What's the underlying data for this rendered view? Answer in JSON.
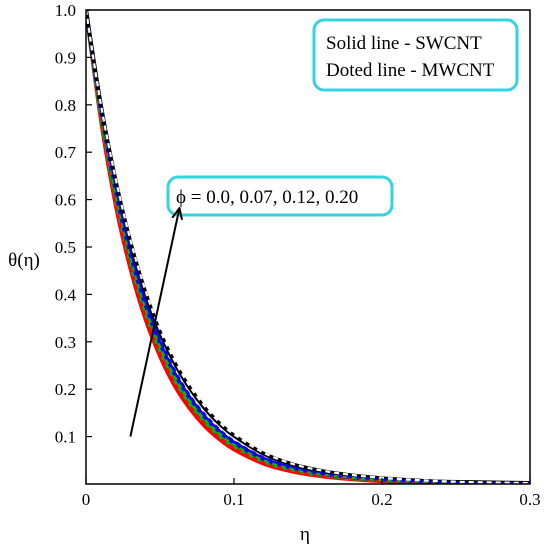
{
  "chart_data": {
    "type": "line",
    "xlabel": "η",
    "ylabel": "θ(η)",
    "xlim": [
      0,
      0.3
    ],
    "ylim": [
      0,
      1.0
    ],
    "x_ticks": [
      "0",
      "0.1",
      "0.2",
      "0.3"
    ],
    "y_ticks": [
      "0.1",
      "0.2",
      "0.3",
      "0.4",
      "0.5",
      "0.6",
      "0.7",
      "0.8",
      "0.9",
      "1.0"
    ],
    "grid": false,
    "legend": {
      "placement": "top-right",
      "entries": [
        "Solid line - SWCNT",
        "Doted line - MWCNT"
      ],
      "border_color": "#33d4e0"
    },
    "annotation": {
      "text": "ϕ = 0.0, 0.07, 0.12, 0.20",
      "border_color": "#33d4e0",
      "arrow_from": [
        0.03,
        0.1
      ],
      "arrow_to": [
        0.063,
        0.58
      ]
    },
    "x": [
      0,
      0.01,
      0.02,
      0.03,
      0.04,
      0.05,
      0.06,
      0.07,
      0.08,
      0.09,
      0.1,
      0.12,
      0.14,
      0.16,
      0.18,
      0.2,
      0.22,
      0.24,
      0.26,
      0.28,
      0.3
    ],
    "series": [
      {
        "style": "solid",
        "color": "#ff0000",
        "values": [
          1.0,
          0.77,
          0.59,
          0.455,
          0.35,
          0.27,
          0.207,
          0.16,
          0.123,
          0.095,
          0.073,
          0.043,
          0.026,
          0.016,
          0.01,
          0.006,
          0.004,
          0.003,
          0.002,
          0.001,
          0.001
        ]
      },
      {
        "style": "solid",
        "color": "#00bb00",
        "values": [
          1.0,
          0.78,
          0.605,
          0.47,
          0.365,
          0.283,
          0.22,
          0.171,
          0.133,
          0.103,
          0.08,
          0.048,
          0.03,
          0.019,
          0.012,
          0.008,
          0.005,
          0.003,
          0.002,
          0.0015,
          0.001
        ]
      },
      {
        "style": "solid",
        "color": "#0000ff",
        "values": [
          1.0,
          0.79,
          0.62,
          0.485,
          0.38,
          0.297,
          0.232,
          0.182,
          0.142,
          0.111,
          0.087,
          0.053,
          0.033,
          0.021,
          0.014,
          0.009,
          0.006,
          0.004,
          0.003,
          0.002,
          0.0015
        ]
      },
      {
        "style": "solid",
        "color": "#000000",
        "values": [
          1.0,
          0.8,
          0.64,
          0.51,
          0.405,
          0.32,
          0.255,
          0.203,
          0.161,
          0.128,
          0.102,
          0.064,
          0.041,
          0.027,
          0.018,
          0.012,
          0.008,
          0.005,
          0.004,
          0.003,
          0.002
        ]
      },
      {
        "style": "dotted",
        "color": "#ff0000",
        "values": [
          1.0,
          0.775,
          0.598,
          0.462,
          0.357,
          0.276,
          0.213,
          0.165,
          0.128,
          0.099,
          0.077,
          0.046,
          0.028,
          0.017,
          0.011,
          0.007,
          0.0045,
          0.003,
          0.002,
          0.0013,
          0.001
        ]
      },
      {
        "style": "dotted",
        "color": "#00bb00",
        "values": [
          1.0,
          0.784,
          0.612,
          0.477,
          0.372,
          0.29,
          0.226,
          0.176,
          0.137,
          0.107,
          0.083,
          0.05,
          0.031,
          0.02,
          0.013,
          0.008,
          0.0055,
          0.0035,
          0.0025,
          0.0017,
          0.0012
        ]
      },
      {
        "style": "dotted",
        "color": "#0000ff",
        "values": [
          1.0,
          0.793,
          0.627,
          0.493,
          0.388,
          0.305,
          0.24,
          0.188,
          0.148,
          0.116,
          0.091,
          0.056,
          0.035,
          0.022,
          0.015,
          0.01,
          0.0065,
          0.0045,
          0.003,
          0.002,
          0.0016
        ]
      },
      {
        "style": "dotted",
        "color": "#ffffff",
        "values": [
          1.0,
          0.802,
          0.645,
          0.515,
          0.41,
          0.326,
          0.26,
          0.207,
          0.165,
          0.131,
          0.105,
          0.066,
          0.042,
          0.028,
          0.019,
          0.013,
          0.009,
          0.006,
          0.004,
          0.003,
          0.002
        ]
      }
    ]
  }
}
